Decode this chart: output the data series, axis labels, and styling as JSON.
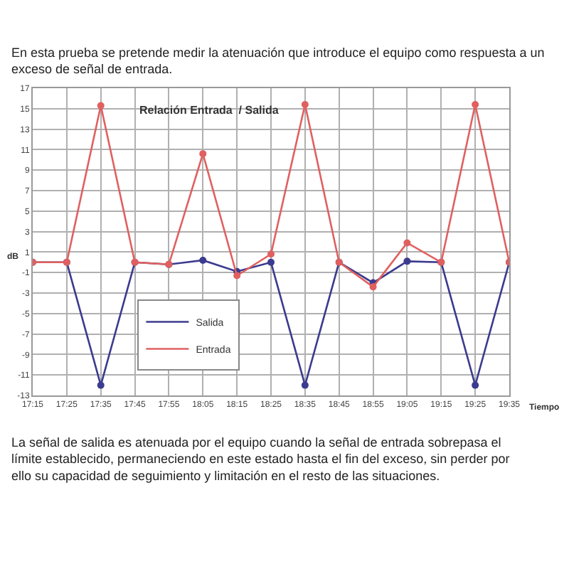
{
  "chart_data": {
    "type": "line",
    "title": "Relación Entrada  / Salida",
    "subtitle": "En esta prueba se pretende medir la atenuación que introduce el equipo como respuesta a un exceso de señal de entrada.",
    "annotations": [
      "La señal de salida es atenuada por el equipo cuando la señal de entrada sobrepasa el límite establecido, permaneciendo en este estado hasta el fin del exceso, sin perder por ello su capacidad de seguimiento y limitación en el resto de las situaciones."
    ],
    "xlabel": "Tiempo",
    "ylabel": "dB",
    "categories": [
      "17:15",
      "17:25",
      "17:35",
      "17:45",
      "17:55",
      "18:05",
      "18:15",
      "18:25",
      "18:35",
      "18:45",
      "18:55",
      "19:05",
      "19:15",
      "19:25",
      "19:35"
    ],
    "series": [
      {
        "name": "Salida",
        "color": "#3b3b8f",
        "values": [
          0,
          0,
          -12,
          0,
          -0.2,
          0.2,
          -0.9,
          0,
          -12,
          0,
          -2,
          0.1,
          0,
          -12,
          0
        ]
      },
      {
        "name": "Entrada",
        "color": "#e06060",
        "values": [
          0,
          0,
          15.3,
          0,
          -0.2,
          10.6,
          -1.3,
          0.8,
          15.4,
          0,
          -2.4,
          1.9,
          0,
          15.4,
          0
        ]
      }
    ],
    "ylim": [
      -13,
      17
    ],
    "yticks": [
      -13,
      -11,
      -9,
      -7,
      -5,
      -3,
      -1,
      1,
      3,
      5,
      7,
      9,
      11,
      13,
      15,
      17
    ],
    "grid": true,
    "legend": "bottom left",
    "marker": "circle",
    "line_style": "solid"
  }
}
